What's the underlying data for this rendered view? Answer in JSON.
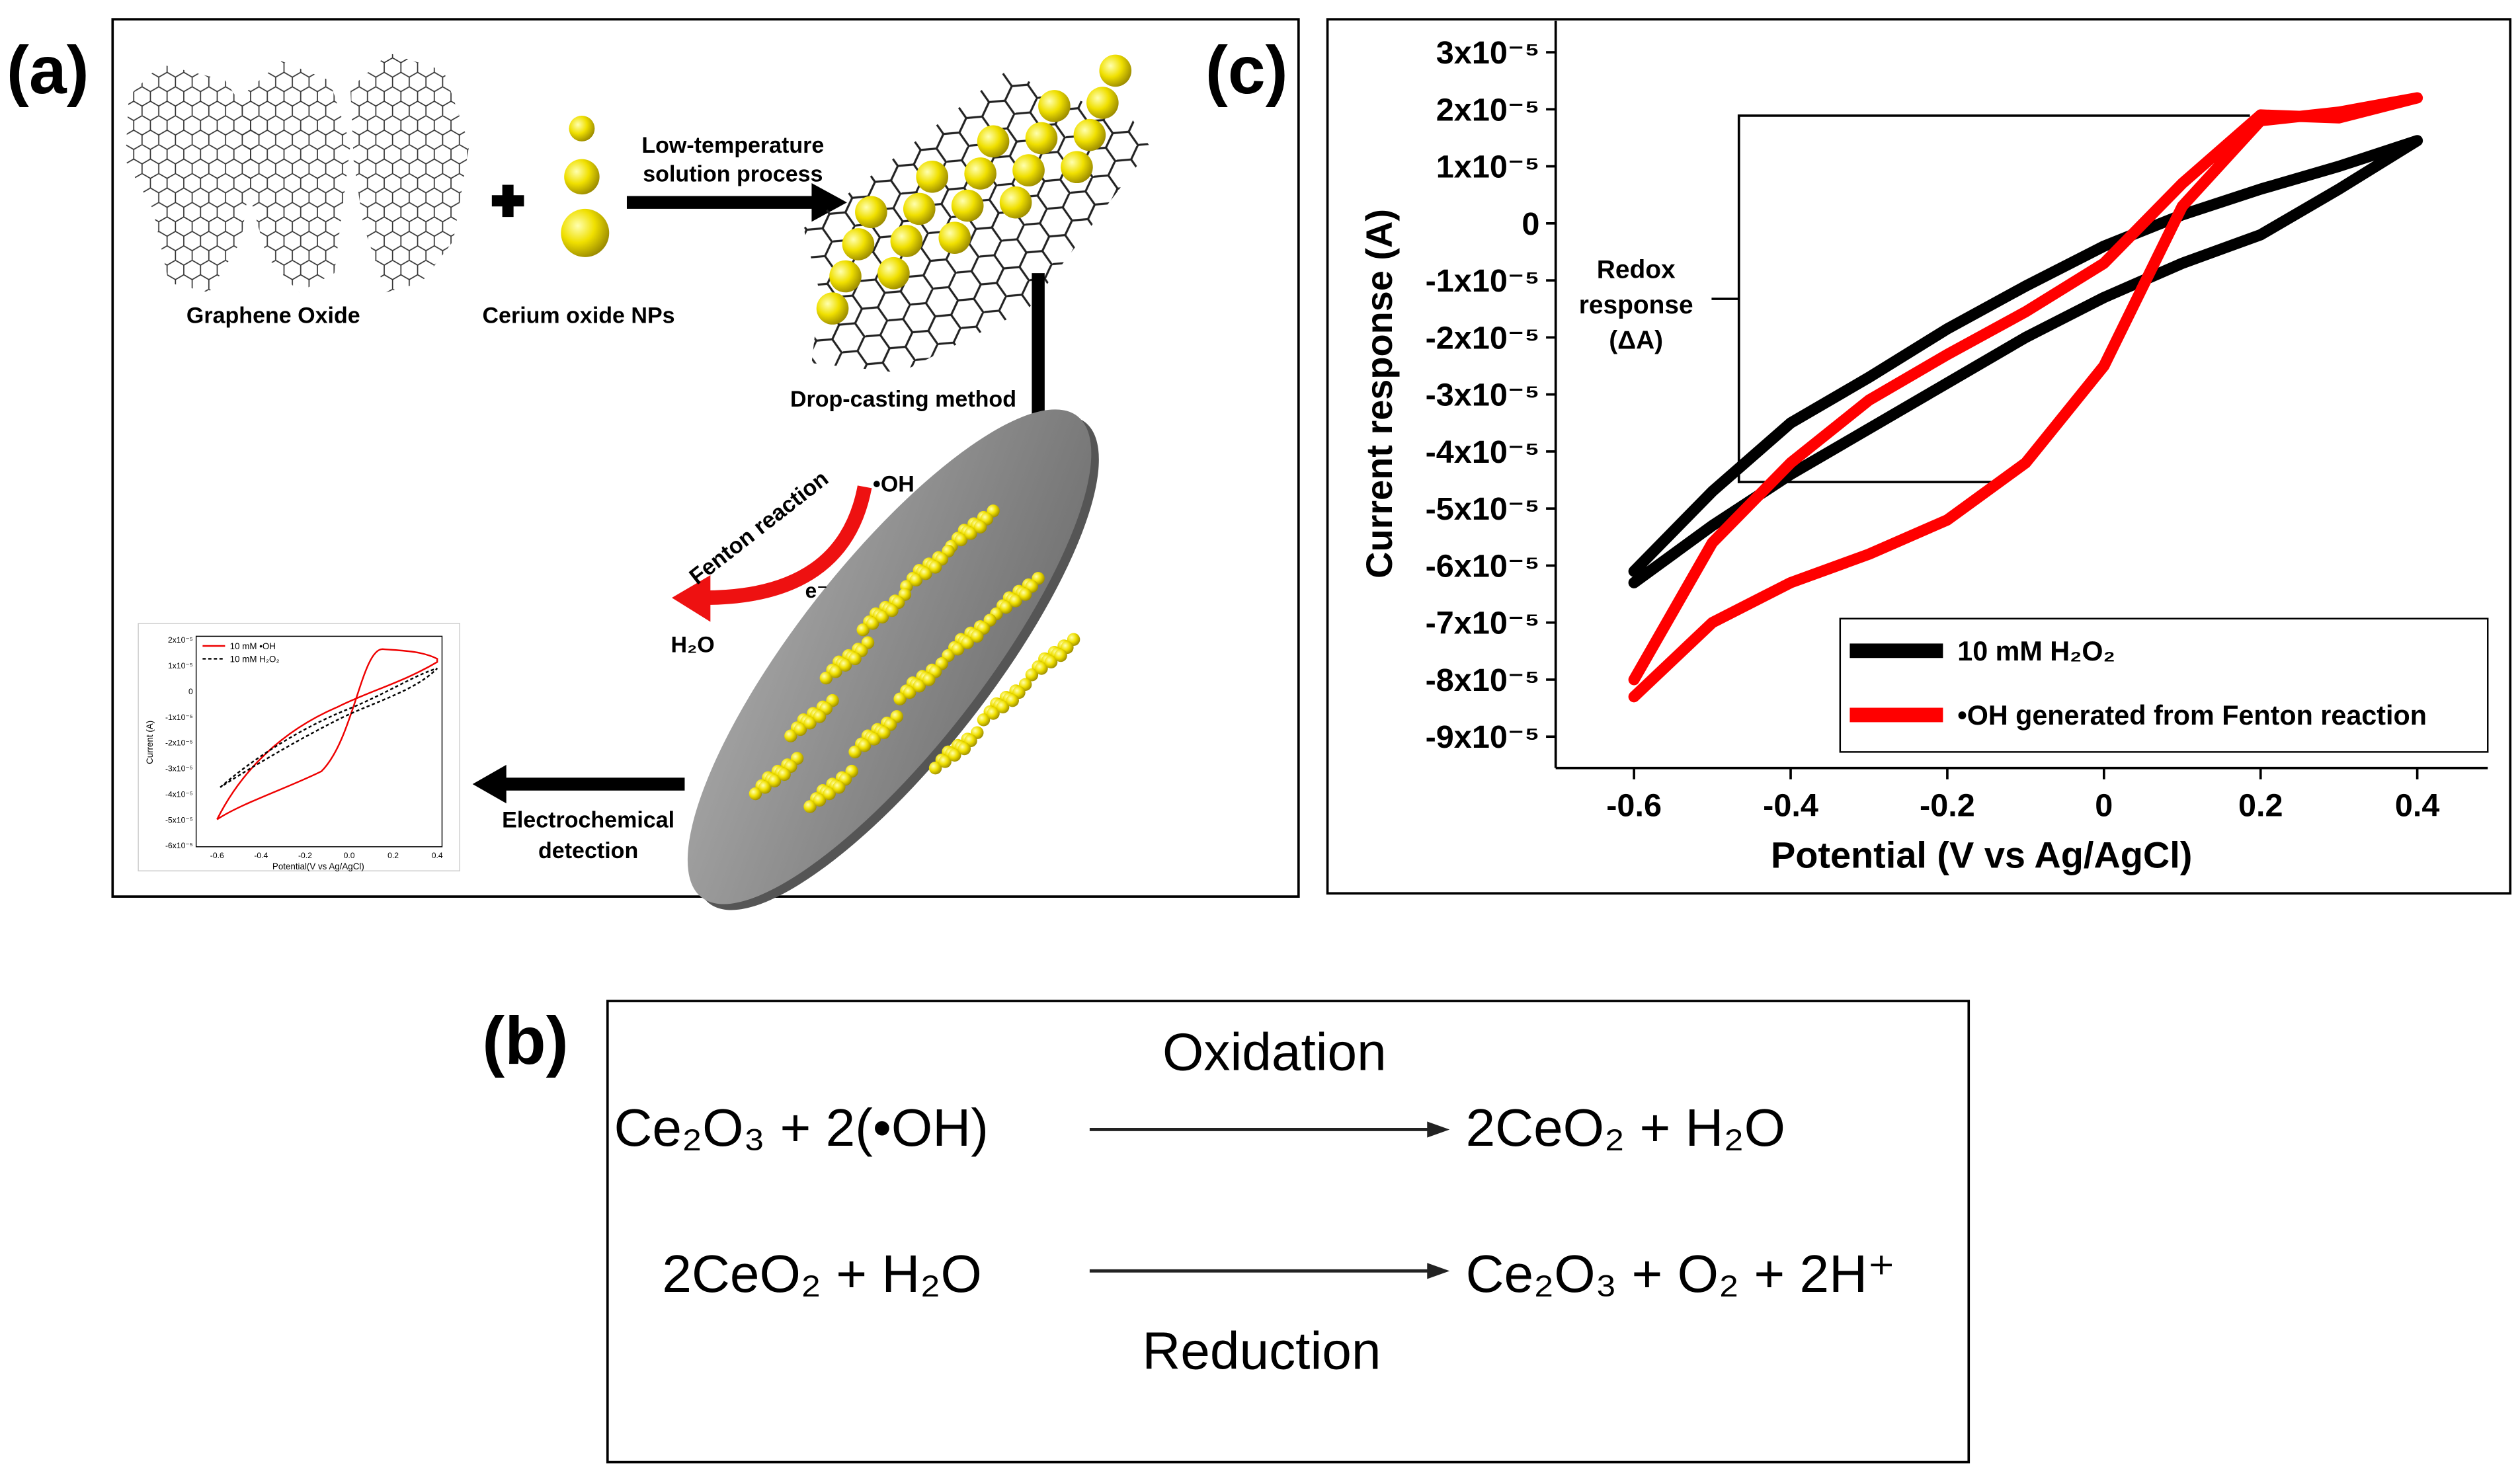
{
  "panel_a": {
    "label": "(a)",
    "graphene_oxide": "Graphene Oxide",
    "cerium_oxide": "Cerium oxide NPs",
    "process": [
      "Low-temperature",
      "solution process"
    ],
    "drop_casting": "Drop-casting method",
    "fenton": "Fenton reaction",
    "oh": "•OH",
    "electron": "e⁻",
    "water": "H₂O",
    "detection": [
      "Electrochemical",
      "detection"
    ],
    "inset": {
      "legend": [
        "10 mM •OH",
        "10 mM H₂O₂"
      ],
      "y_label": "Current (A)",
      "x_label": "Potential(V vs Ag/AgCl)",
      "xticks": [
        "-0.6",
        "-0.4",
        "-0.2",
        "0.0",
        "0.2",
        "0.4"
      ],
      "yticks": [
        "2x10⁻⁵",
        "1x10⁻⁵",
        "0",
        "-1x10⁻⁵",
        "-2x10⁻⁵",
        "-3x10⁻⁵",
        "-4x10⁻⁵",
        "-5x10⁻⁵",
        "-6x10⁻⁵"
      ]
    }
  },
  "panel_b": {
    "label": "(b)",
    "oxidation": "Oxidation",
    "reduction": "Reduction",
    "eq1_left": "Ce₂O₃ + 2(•OH)",
    "eq1_right": "2CeO₂ + H₂O",
    "eq2_left": "2CeO₂ + H₂O",
    "eq2_right": "Ce₂O₃ + O₂ + 2H⁺"
  },
  "panel_c": {
    "label": "(c)"
  },
  "chart_data": {
    "type": "line",
    "x_label": "Potential (V vs Ag/AgCl)",
    "y_label": "Current response (A)",
    "annotation": [
      "Redox",
      "response",
      "(ΔA)"
    ],
    "x": [
      -0.6,
      -0.5,
      -0.4,
      -0.3,
      -0.2,
      -0.1,
      0,
      0.1,
      0.2,
      0.3,
      0.4,
      0.3,
      0.2,
      0.1,
      0,
      -0.1,
      -0.2,
      -0.3,
      -0.4,
      -0.5,
      -0.6
    ],
    "series": [
      {
        "name": "10 mM H₂O₂",
        "color": "#000000",
        "values": [
          -6.3e-05,
          -5.3e-05,
          -4.4e-05,
          -3.6e-05,
          -2.8e-05,
          -2e-05,
          -1.3e-05,
          -7e-06,
          -2e-06,
          6e-06,
          1.45e-05,
          1e-05,
          6e-06,
          1.5e-06,
          -4e-06,
          -1.1e-05,
          -1.85e-05,
          -2.7e-05,
          -3.5e-05,
          -4.7e-05,
          -6.1e-05
        ]
      },
      {
        "name": "•OH generated from Fenton reaction",
        "color": "#ff0000",
        "values": [
          -8.3e-05,
          -7e-05,
          -6.3e-05,
          -5.8e-05,
          -5.2e-05,
          -4.2e-05,
          -2.5e-05,
          3e-06,
          1.8e-05,
          1.95e-05,
          2.2e-05,
          1.85e-05,
          1.9e-05,
          7e-06,
          -7e-06,
          -1.55e-05,
          -2.3e-05,
          -3.1e-05,
          -4.2e-05,
          -5.6e-05,
          -8e-05
        ]
      }
    ],
    "xlim": [
      -0.7,
      0.49
    ],
    "ylim": [
      -9.55e-05,
      3.55e-05
    ],
    "xticks": [
      -0.6,
      -0.4,
      -0.2,
      0,
      0.2,
      0.4
    ],
    "yticks": [
      {
        "value": 3e-05,
        "label": "3x10⁻⁵"
      },
      {
        "value": 2e-05,
        "label": "2x10⁻⁵"
      },
      {
        "value": 1e-05,
        "label": "1x10⁻⁵"
      },
      0,
      {
        "value": -1e-05,
        "label": "-1x10⁻⁵"
      },
      {
        "value": -2e-05,
        "label": "-2x10⁻⁵"
      },
      {
        "value": -3e-05,
        "label": "-3x10⁻⁵"
      },
      {
        "value": -4e-05,
        "label": "-4x10⁻⁵"
      },
      {
        "value": -5e-05,
        "label": "-5x10⁻⁵"
      },
      {
        "value": -6e-05,
        "label": "-6x10⁻⁵"
      },
      {
        "value": -7e-05,
        "label": "-7x10⁻⁵"
      },
      {
        "value": -8e-05,
        "label": "-8x10⁻⁵"
      },
      {
        "value": -9e-05,
        "label": "-9x10⁻⁵"
      }
    ],
    "legend": "lower right"
  }
}
